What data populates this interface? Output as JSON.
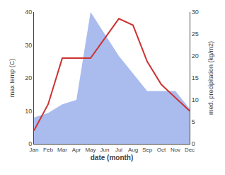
{
  "chart_data": {
    "type": "line",
    "categories": [
      "Jan",
      "Feb",
      "Mar",
      "Apr",
      "May",
      "Jun",
      "Jul",
      "Aug",
      "Sep",
      "Oct",
      "Nov",
      "Dec"
    ],
    "xlabel": "date (month)",
    "ylabel": "max temp (C)",
    "y2label": "med. precipitation (kg/m2)",
    "series": [
      {
        "type": "area",
        "color": "#aabbee",
        "axis": "y2",
        "values": [
          6,
          7,
          9,
          10,
          30,
          25,
          20,
          16,
          12,
          12,
          12,
          8
        ]
      },
      {
        "type": "line",
        "color": "#cc3333",
        "values": [
          4,
          12,
          26,
          26,
          26,
          32,
          38,
          36,
          25,
          18,
          14,
          10
        ]
      }
    ],
    "ylim": [
      0,
      40
    ],
    "yticks": [
      0,
      10,
      20,
      30,
      40
    ],
    "y2lim": [
      0,
      30
    ],
    "y2ticks": [
      0,
      5,
      10,
      15,
      20,
      25,
      30
    ],
    "grid": false
  }
}
